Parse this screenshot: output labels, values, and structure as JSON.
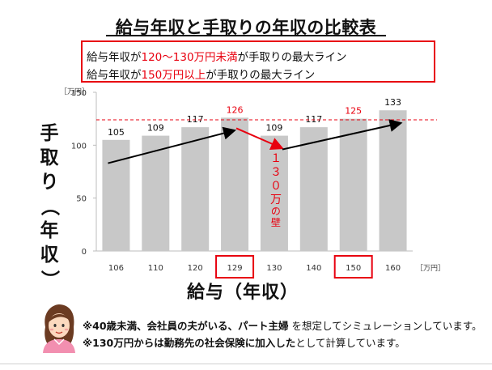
{
  "title": "給与年収と手取りの年収の比較表",
  "callout": {
    "line1": {
      "pre": "給与年収が",
      "hl": "120〜130万円未満",
      "post": "が手取りの最大ライン"
    },
    "line2": {
      "pre": "給与年収が",
      "hl": "150万円以上",
      "post": "が手取りの最大ライン"
    }
  },
  "chart_data": {
    "type": "bar",
    "categories": [
      "106",
      "110",
      "120",
      "129",
      "130",
      "140",
      "150",
      "160"
    ],
    "values": [
      105,
      109,
      117,
      126,
      109,
      117,
      125,
      133
    ],
    "value_labels": [
      "105",
      "109",
      "117",
      "126",
      "109",
      "117",
      "125",
      "133"
    ],
    "highlighted_value_labels": [
      "126",
      "125"
    ],
    "highlighted_categories": [
      "129",
      "150"
    ],
    "ylim": [
      0,
      150
    ],
    "yticks": [
      "0",
      "50",
      "100",
      "150"
    ],
    "y_unit": "［万円］",
    "x_unit": "［万円］",
    "ylabel": "手取り（年収）",
    "xlabel": "給与（年収）",
    "reference_line": 124,
    "annotation": "１３０万の壁",
    "colors": {
      "bar": "#c8c8c8",
      "highlight": "#e8000f",
      "arrow": "#000000",
      "text": "#111111",
      "axis": "#bcbcbc"
    }
  },
  "notes": [
    {
      "bold": "※40歳未満、会社員の夫がいる、パート主婦",
      "rest": " を想定してシミュレーションしています。"
    },
    {
      "bold": "※130万円からは勤務先の社会保険に加入した",
      "rest": "として計算しています。"
    }
  ],
  "icons": {
    "avatar": "woman-avatar-icon"
  }
}
